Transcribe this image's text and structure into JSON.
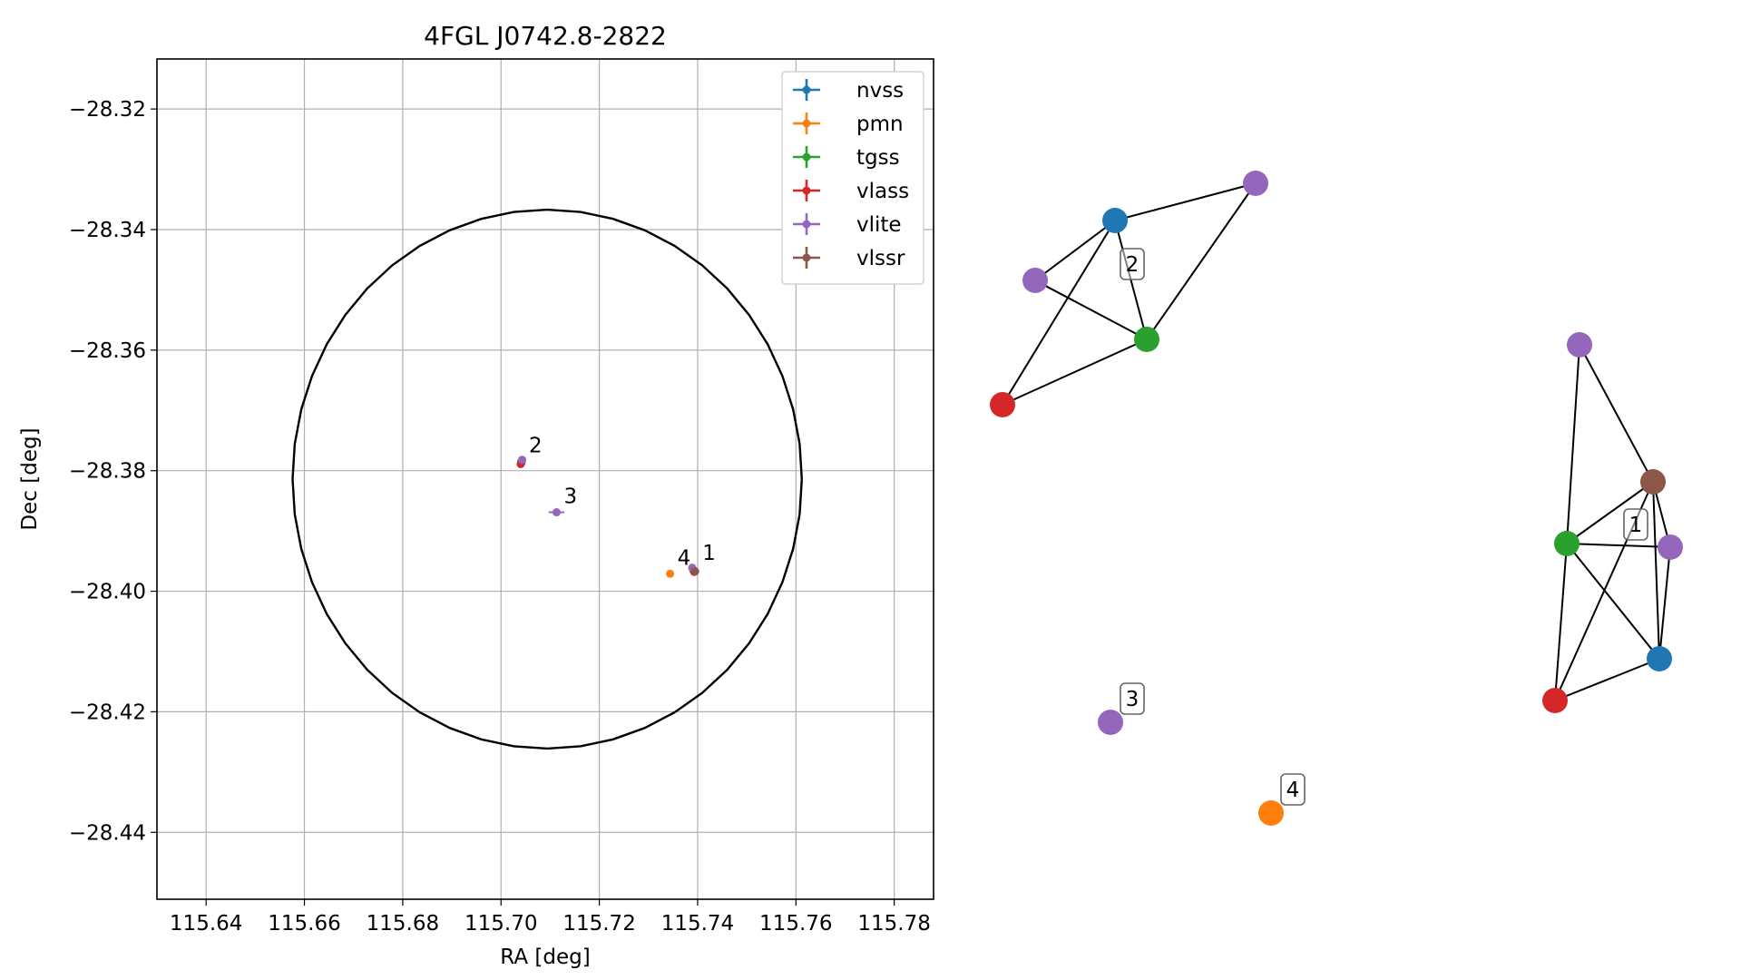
{
  "chart_data": [
    {
      "type": "scatter",
      "title": "4FGL J0742.8-2822",
      "xlabel": "RA [deg]",
      "ylabel": "Dec [deg]",
      "xlim": [
        115.63,
        115.788
      ],
      "ylim": [
        -28.4511,
        -28.3117
      ],
      "xticks": [
        115.64,
        115.66,
        115.68,
        115.7,
        115.72,
        115.74,
        115.76,
        115.78
      ],
      "xtick_labels": [
        "115.64",
        "115.66",
        "115.68",
        "115.70",
        "115.72",
        "115.74",
        "115.76",
        "115.78"
      ],
      "yticks": [
        -28.32,
        -28.34,
        -28.36,
        -28.38,
        -28.4,
        -28.42,
        -28.44
      ],
      "ytick_labels": [
        "−28.32",
        "−28.34",
        "−28.36",
        "−28.38",
        "−28.40",
        "−28.42",
        "−28.44"
      ],
      "grid": true,
      "legend_position": "top-right",
      "colors": {
        "nvss": "#1f77b4",
        "pmn": "#ff7f0e",
        "tgss": "#2ca02c",
        "vlass": "#d62728",
        "vlite": "#9467bd",
        "vlssr": "#8c564b"
      },
      "series": [
        {
          "name": "nvss",
          "points": [
            {
              "x": 115.7392,
              "y": -28.3966
            },
            {
              "x": 115.7042,
              "y": -28.3786
            }
          ]
        },
        {
          "name": "pmn",
          "points": [
            {
              "x": 115.7344,
              "y": -28.3971
            }
          ]
        },
        {
          "name": "tgss",
          "points": [
            {
              "x": 115.7391,
              "y": -28.3965
            },
            {
              "x": 115.7041,
              "y": -28.3785
            }
          ]
        },
        {
          "name": "vlass",
          "points": [
            {
              "x": 115.7393,
              "y": -28.3968
            },
            {
              "x": 115.704,
              "y": -28.3789
            }
          ]
        },
        {
          "name": "vlite",
          "points": [
            {
              "x": 115.7389,
              "y": -28.3961
            },
            {
              "x": 115.7113,
              "y": -28.3869
            },
            {
              "x": 115.7043,
              "y": -28.3782
            }
          ],
          "xerr": [
            0.0,
            0.0016,
            0.0
          ]
        },
        {
          "name": "vlssr",
          "points": [
            {
              "x": 115.7395,
              "y": -28.3967
            }
          ]
        }
      ],
      "ellipse": {
        "center": [
          115.7094,
          "-28.3814"
        ],
        "semi_axis_ra": 0.0518,
        "semi_axis_dec": 0.0447
      },
      "annotations": [
        {
          "text": "1",
          "x": 115.7395,
          "y": -28.3966
        },
        {
          "text": "2",
          "x": 115.7042,
          "y": -28.3785
        },
        {
          "text": "3",
          "x": 115.7113,
          "y": -28.3869
        },
        {
          "text": "4",
          "x": 115.7344,
          "y": -28.3971
        }
      ]
    },
    {
      "type": "graph",
      "title": "",
      "clusters": [
        {
          "label": "1",
          "nodes": [
            "vlite",
            "vlssr",
            "tgss",
            "vlite",
            "nvss",
            "vlass"
          ],
          "edges": [
            [
              0,
              1
            ],
            [
              0,
              2
            ],
            [
              1,
              2
            ],
            [
              1,
              4
            ],
            [
              1,
              5
            ],
            [
              2,
              3
            ],
            [
              2,
              4
            ],
            [
              2,
              5
            ],
            [
              3,
              4
            ],
            [
              4,
              5
            ],
            [
              1,
              3
            ]
          ]
        },
        {
          "label": "2",
          "nodes": [
            "vlite",
            "nvss",
            "vlite",
            "tgss",
            "vlass"
          ],
          "edges": [
            [
              0,
              1
            ],
            [
              0,
              3
            ],
            [
              1,
              2
            ],
            [
              1,
              3
            ],
            [
              1,
              4
            ],
            [
              2,
              3
            ],
            [
              3,
              4
            ]
          ]
        },
        {
          "label": "3",
          "nodes": [
            "vlite"
          ],
          "edges": []
        },
        {
          "label": "4",
          "nodes": [
            "pmn"
          ],
          "edges": []
        }
      ]
    }
  ]
}
